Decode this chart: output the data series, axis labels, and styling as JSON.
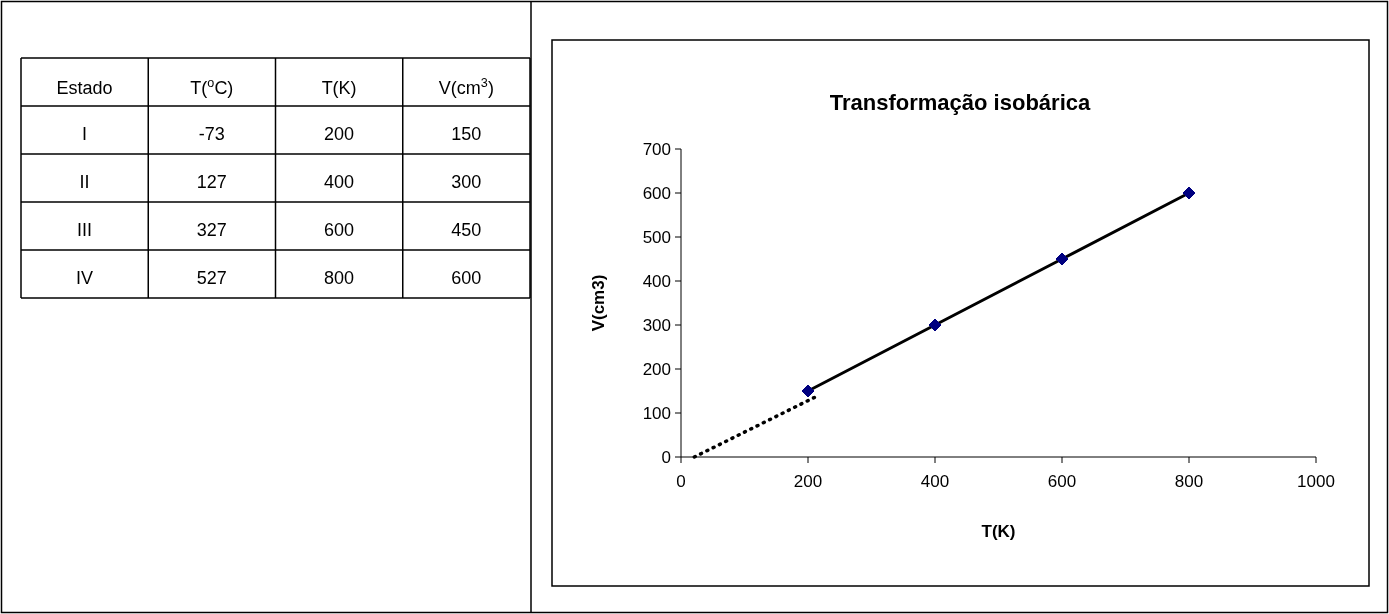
{
  "chart_data": [
    {
      "type": "heatmap",
      "ylabel": "Estado",
      "categories": [
        "T($^{o}$C)",
        "T(K)",
        "V(cm$^{3}$)"
      ],
      "y_categories": [
        "I",
        "II",
        "III",
        "IV"
      ],
      "cells": [
        [
          -73,
          200,
          150
        ],
        [
          127,
          400,
          300
        ],
        [
          327,
          600,
          450
        ],
        [
          527,
          800,
          600
        ]
      ],
      "data_labels": true
    },
    {
      "type": "line",
      "title": "Transformação isobárica",
      "xlabel": "T(K)",
      "ylabel": "V(cm3)",
      "xlim": [
        0,
        1000
      ],
      "xticks": [
        0,
        200,
        400,
        600,
        800,
        1000
      ],
      "ylim": [
        0,
        700
      ],
      "yticks": [
        0,
        100,
        200,
        300,
        400,
        500,
        600,
        700
      ],
      "grid": false,
      "series": [
        {
          "type": "line",
          "color": "#000000",
          "line_style": "solid",
          "marker": "none",
          "x": [
            200,
            400,
            600,
            800
          ],
          "values": [
            150,
            300,
            450,
            600
          ]
        },
        {
          "type": "scatter",
          "color": "#000080",
          "marker": "diamond",
          "x": [
            200,
            400,
            600,
            800
          ],
          "values": [
            150,
            300,
            450,
            600
          ]
        },
        {
          "type": "line",
          "color": "#000000",
          "line_style": "dotted",
          "marker": "none",
          "x": [
            21,
            218
          ],
          "values": [
            0,
            141
          ]
        }
      ]
    }
  ]
}
